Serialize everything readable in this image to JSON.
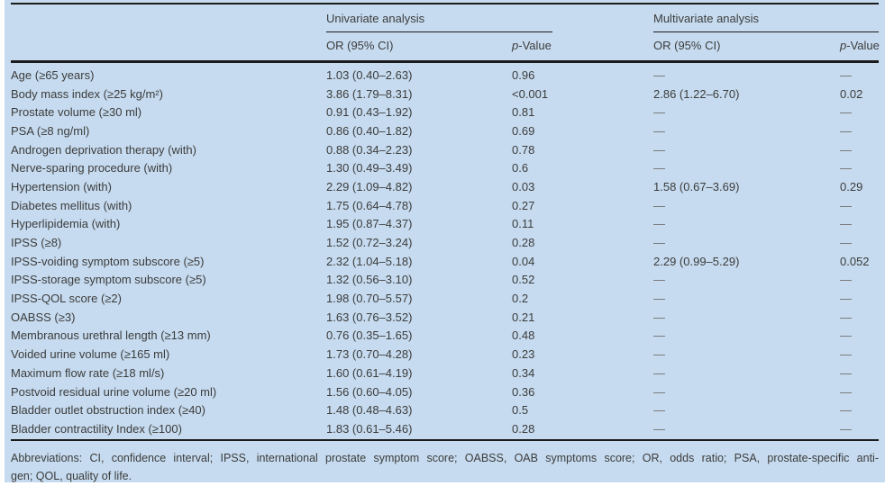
{
  "colors": {
    "panel_background": "#c6dbef",
    "text": "#3c3c3c",
    "rule": "#1b1b1b",
    "missing_dash": "#6e6e6e"
  },
  "table": {
    "group_headers": {
      "univariate": "Univariate analysis",
      "multivariate": "Multivariate analysis"
    },
    "column_headers": {
      "or_ci_univariate": "OR (95% CI)",
      "or_ci_multivariate": "OR (95% CI)",
      "p_italic": "p",
      "p_rest": "-Value"
    },
    "rows": [
      {
        "label": "Age (≥65 years)",
        "uni_or": "1.03 (0.40–2.63)",
        "uni_p": "0.96",
        "multi_or": "—",
        "multi_p": "—"
      },
      {
        "label": "Body mass index (≥25 kg/m²)",
        "uni_or": "3.86 (1.79–8.31)",
        "uni_p": "<0.001",
        "multi_or": "2.86 (1.22–6.70)",
        "multi_p": "0.02"
      },
      {
        "label": "Prostate volume (≥30 ml)",
        "uni_or": "0.91 (0.43–1.92)",
        "uni_p": "0.81",
        "multi_or": "—",
        "multi_p": "—"
      },
      {
        "label": "PSA (≥8 ng/ml)",
        "uni_or": "0.86 (0.40–1.82)",
        "uni_p": "0.69",
        "multi_or": "—",
        "multi_p": "—"
      },
      {
        "label": "Androgen deprivation therapy (with)",
        "uni_or": "0.88 (0.34–2.23)",
        "uni_p": "0.78",
        "multi_or": "—",
        "multi_p": "—"
      },
      {
        "label": "Nerve-sparing procedure (with)",
        "uni_or": "1.30 (0.49–3.49)",
        "uni_p": "0.6",
        "multi_or": "—",
        "multi_p": "—"
      },
      {
        "label": "Hypertension (with)",
        "uni_or": "2.29 (1.09–4.82)",
        "uni_p": "0.03",
        "multi_or": "1.58 (0.67–3.69)",
        "multi_p": "0.29"
      },
      {
        "label": "Diabetes mellitus (with)",
        "uni_or": "1.75 (0.64–4.78)",
        "uni_p": "0.27",
        "multi_or": "—",
        "multi_p": "—"
      },
      {
        "label": "Hyperlipidemia (with)",
        "uni_or": "1.95 (0.87–4.37)",
        "uni_p": "0.11",
        "multi_or": "—",
        "multi_p": "—"
      },
      {
        "label": "IPSS (≥8)",
        "uni_or": "1.52 (0.72–3.24)",
        "uni_p": "0.28",
        "multi_or": "—",
        "multi_p": "—"
      },
      {
        "label": "IPSS-voiding symptom subscore (≥5)",
        "uni_or": "2.32 (1.04–5.18)",
        "uni_p": "0.04",
        "multi_or": "2.29 (0.99–5.29)",
        "multi_p": "0.052"
      },
      {
        "label": "IPSS-storage symptom subscore (≥5)",
        "uni_or": "1.32 (0.56–3.10)",
        "uni_p": "0.52",
        "multi_or": "—",
        "multi_p": "—"
      },
      {
        "label": "IPSS-QOL score (≥2)",
        "uni_or": "1.98 (0.70–5.57)",
        "uni_p": "0.2",
        "multi_or": "—",
        "multi_p": "—"
      },
      {
        "label": "OABSS (≥3)",
        "uni_or": "1.63 (0.76–3.52)",
        "uni_p": "0.21",
        "multi_or": "—",
        "multi_p": "—"
      },
      {
        "label": "Membranous urethral length (≥13 mm)",
        "uni_or": "0.76 (0.35–1.65)",
        "uni_p": "0.48",
        "multi_or": "—",
        "multi_p": "—"
      },
      {
        "label": "Voided urine volume (≥165 ml)",
        "uni_or": "1.73 (0.70–4.28)",
        "uni_p": "0.23",
        "multi_or": "—",
        "multi_p": "—"
      },
      {
        "label": "Maximum flow rate (≥18 ml/s)",
        "uni_or": "1.60 (0.61–4.19)",
        "uni_p": "0.34",
        "multi_or": "—",
        "multi_p": "—"
      },
      {
        "label": "Postvoid residual urine volume (≥20 ml)",
        "uni_or": "1.56 (0.60–4.05)",
        "uni_p": "0.36",
        "multi_or": "—",
        "multi_p": "—"
      },
      {
        "label": "Bladder outlet obstruction index (≥40)",
        "uni_or": "1.48 (0.48–4.63)",
        "uni_p": "0.5",
        "multi_or": "—",
        "multi_p": "—"
      },
      {
        "label": "Bladder contractility Index (≥100)",
        "uni_or": "1.83 (0.61–5.46)",
        "uni_p": "0.28",
        "multi_or": "—",
        "multi_p": "—"
      }
    ],
    "footnote_line1": "Abbreviations: CI, confidence interval; IPSS, international prostate symptom score; OABSS, OAB symptoms score; OR, odds ratio; PSA, prostate-specific anti-",
    "footnote_line2": "gen; QOL, quality of life."
  }
}
